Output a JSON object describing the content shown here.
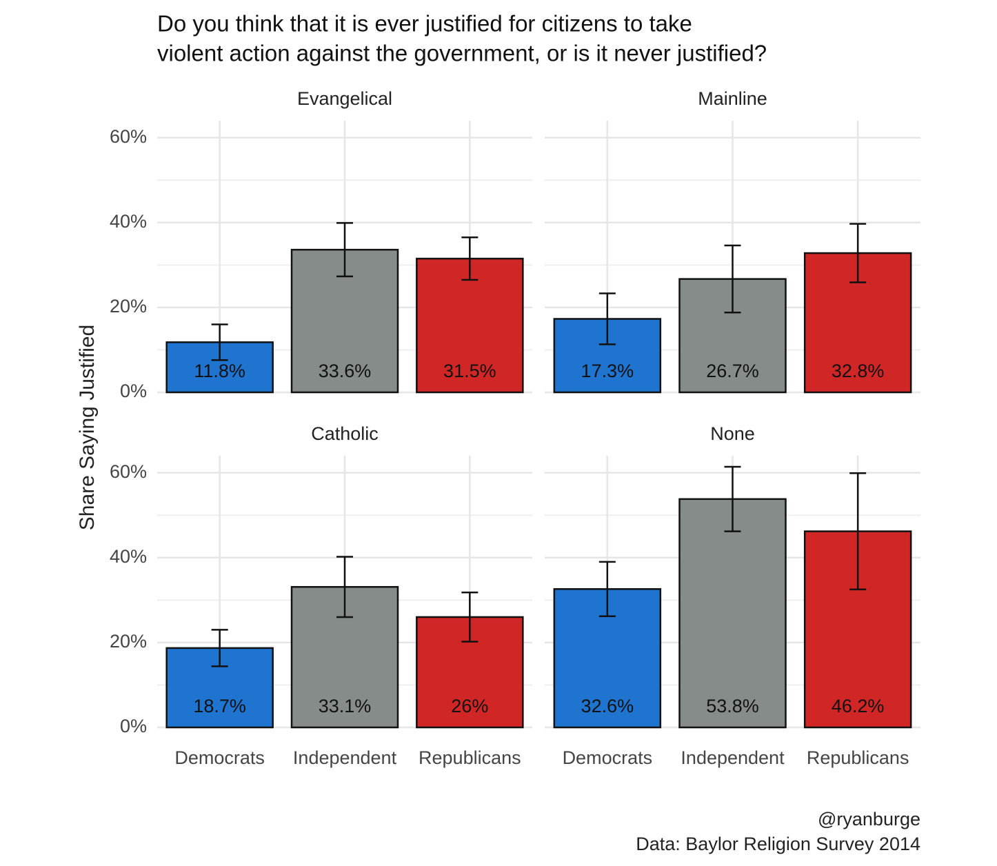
{
  "title": [
    "Do you think that it is ever justified for citizens to take",
    "violent action against the government, or is it never justified?"
  ],
  "y_label": "Share Saying Justified",
  "caption": [
    "@ryanburge",
    "Data: Baylor Religion Survey 2014"
  ],
  "chart_data": [
    {
      "type": "bar",
      "title": "Evangelical",
      "categories": [
        "Democrats",
        "Independent",
        "Republicans"
      ],
      "values": [
        11.8,
        33.6,
        31.5
      ],
      "value_labels": [
        "11.8%",
        "33.6%",
        "31.5%"
      ],
      "errors": [
        4.2,
        6.3,
        5.0
      ],
      "colors": [
        "#1f74d0",
        "#868c8a",
        "#d12626"
      ],
      "ylim": [
        0,
        64
      ],
      "yticks": [
        {
          "value": 0,
          "label": "0%"
        },
        {
          "value": 20,
          "label": "20%"
        },
        {
          "value": 40,
          "label": "40%"
        },
        {
          "value": 60,
          "label": "60%"
        }
      ],
      "grid": true
    },
    {
      "type": "bar",
      "title": "Mainline",
      "categories": [
        "Democrats",
        "Independent",
        "Republicans"
      ],
      "values": [
        17.3,
        26.7,
        32.8
      ],
      "value_labels": [
        "17.3%",
        "26.7%",
        "32.8%"
      ],
      "errors": [
        6.0,
        7.9,
        6.9
      ],
      "colors": [
        "#1f74d0",
        "#868c8a",
        "#d12626"
      ],
      "ylim": [
        0,
        64
      ],
      "yticks": [
        {
          "value": 0,
          "label": "0%"
        },
        {
          "value": 20,
          "label": "20%"
        },
        {
          "value": 40,
          "label": "40%"
        },
        {
          "value": 60,
          "label": "60%"
        }
      ],
      "grid": true
    },
    {
      "type": "bar",
      "title": "Catholic",
      "categories": [
        "Democrats",
        "Independent",
        "Republicans"
      ],
      "values": [
        18.7,
        33.1,
        26
      ],
      "value_labels": [
        "18.7%",
        "33.1%",
        "26%"
      ],
      "errors": [
        4.3,
        7.1,
        5.8
      ],
      "colors": [
        "#1f74d0",
        "#868c8a",
        "#d12626"
      ],
      "ylim": [
        0,
        64
      ],
      "yticks": [
        {
          "value": 0,
          "label": "0%"
        },
        {
          "value": 20,
          "label": "20%"
        },
        {
          "value": 40,
          "label": "40%"
        },
        {
          "value": 60,
          "label": "60%"
        }
      ],
      "grid": true
    },
    {
      "type": "bar",
      "title": "None",
      "categories": [
        "Democrats",
        "Independent",
        "Republicans"
      ],
      "values": [
        32.6,
        53.8,
        46.2
      ],
      "value_labels": [
        "32.6%",
        "53.8%",
        "46.2%"
      ],
      "errors": [
        6.4,
        7.6,
        13.7
      ],
      "colors": [
        "#1f74d0",
        "#868c8a",
        "#d12626"
      ],
      "ylim": [
        0,
        64
      ],
      "yticks": [
        {
          "value": 0,
          "label": "0%"
        },
        {
          "value": 20,
          "label": "20%"
        },
        {
          "value": 40,
          "label": "40%"
        },
        {
          "value": 60,
          "label": "60%"
        }
      ],
      "grid": true
    }
  ]
}
